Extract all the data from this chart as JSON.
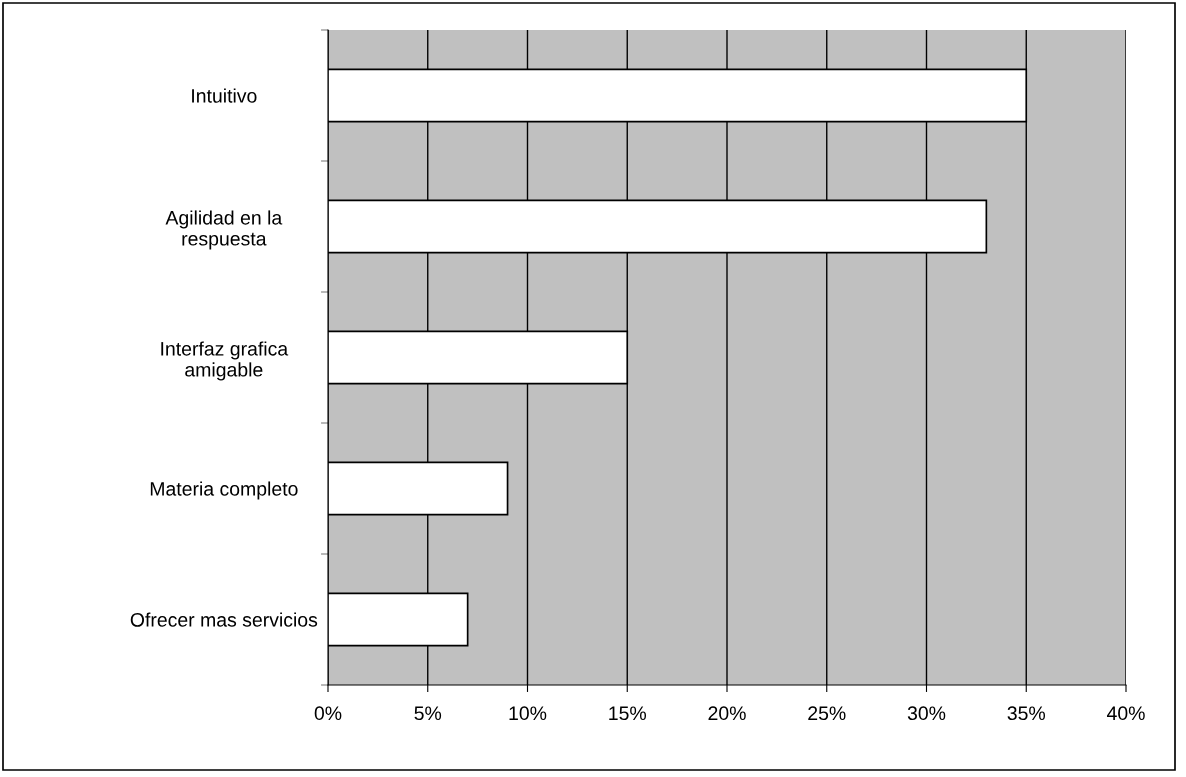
{
  "chart_data": {
    "type": "bar",
    "orientation": "horizontal",
    "categories": [
      "Intuitivo",
      "Agilidad en la\nrespuesta",
      "Interfaz grafica\namigable",
      "Materia completo",
      "Ofrecer mas servicios"
    ],
    "values": [
      35,
      33,
      15,
      9,
      7
    ],
    "color": "#ffffff",
    "xlim": [
      0,
      40
    ],
    "xticks": [
      {
        "value": 0,
        "label": "0%"
      },
      {
        "value": 5,
        "label": "5%"
      },
      {
        "value": 10,
        "label": "10%"
      },
      {
        "value": 15,
        "label": "15%"
      },
      {
        "value": 20,
        "label": "20%"
      },
      {
        "value": 25,
        "label": "25%"
      },
      {
        "value": 30,
        "label": "30%"
      },
      {
        "value": 35,
        "label": "35%"
      },
      {
        "value": 40,
        "label": "40%"
      }
    ],
    "grid": "x",
    "legend": false
  }
}
